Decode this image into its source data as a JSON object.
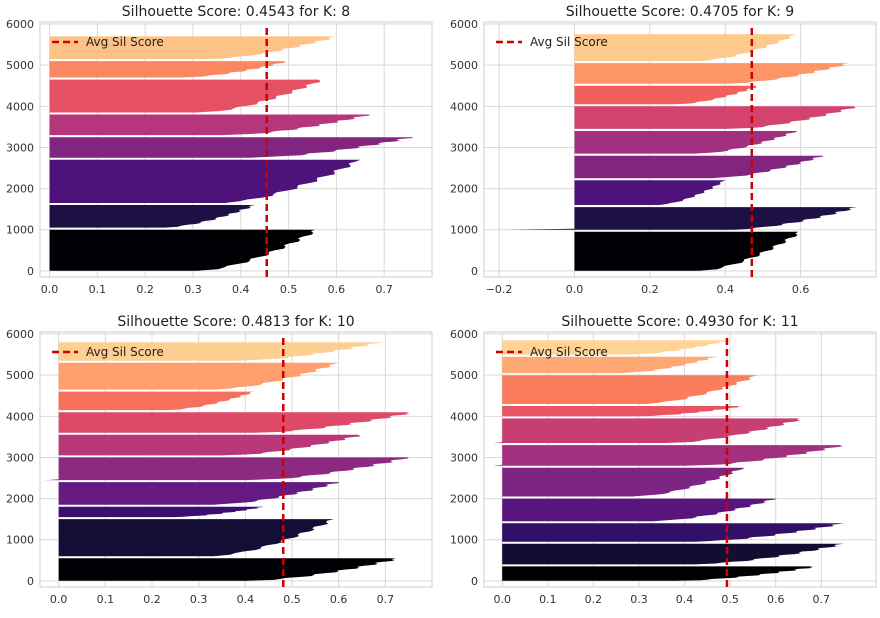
{
  "colors": {
    "avg_line": "#cc0000",
    "plot_bg": "#ffffff",
    "grid": "#d9d9d9",
    "axis_text": "#333333",
    "cluster_palette_name": "magma"
  },
  "chart_data": [
    {
      "type": "silhouette",
      "title": "Silhouette Score: 0.4543 for K: 8",
      "k": 8,
      "avg_score": 0.4543,
      "legend_label": "Avg Sil Score",
      "legend_position": "top-left",
      "xlim": [
        -0.02,
        0.8
      ],
      "ylim": [
        -150,
        6050
      ],
      "xticks": [
        0.0,
        0.1,
        0.2,
        0.3,
        0.4,
        0.5,
        0.6,
        0.7
      ],
      "xtick_labels": [
        "0.0",
        "0.1",
        "0.2",
        "0.3",
        "0.4",
        "0.5",
        "0.6",
        "0.7"
      ],
      "yticks": [
        0,
        1000,
        2000,
        3000,
        4000,
        5000,
        6000
      ],
      "ytick_labels": [
        "0",
        "1000",
        "2000",
        "3000",
        "4000",
        "5000",
        "6000"
      ],
      "clusters": [
        {
          "id": 0,
          "start": 0,
          "end": 1000,
          "min": 0.0,
          "max": 0.56,
          "color": "#000004"
        },
        {
          "id": 1,
          "start": 1050,
          "end": 1600,
          "min": 0.0,
          "max": 0.43,
          "color": "#1c1044"
        },
        {
          "id": 2,
          "start": 1650,
          "end": 2700,
          "min": 0.0,
          "max": 0.65,
          "color": "#4f127b"
        },
        {
          "id": 3,
          "start": 2750,
          "end": 3250,
          "min": 0.0,
          "max": 0.76,
          "color": "#812581"
        },
        {
          "id": 4,
          "start": 3300,
          "end": 3800,
          "min": 0.0,
          "max": 0.67,
          "color": "#b5367a"
        },
        {
          "id": 5,
          "start": 3850,
          "end": 4650,
          "min": 0.0,
          "max": 0.57,
          "color": "#e55064"
        },
        {
          "id": 6,
          "start": 4700,
          "end": 5100,
          "min": 0.0,
          "max": 0.5,
          "color": "#fb8761"
        },
        {
          "id": 7,
          "start": 5150,
          "end": 5700,
          "min": 0.0,
          "max": 0.6,
          "color": "#fec287"
        }
      ]
    },
    {
      "type": "silhouette",
      "title": "Silhouette Score: 0.4705 for K: 9",
      "k": 9,
      "avg_score": 0.4705,
      "legend_label": "Avg Sil Score",
      "legend_position": "top-left",
      "xlim": [
        -0.24,
        0.8
      ],
      "ylim": [
        -150,
        6050
      ],
      "xticks": [
        -0.2,
        0.0,
        0.2,
        0.4,
        0.6
      ],
      "xtick_labels": [
        "−0.2",
        "0.0",
        "0.2",
        "0.4",
        "0.6"
      ],
      "yticks": [
        0,
        1000,
        2000,
        3000,
        4000,
        5000,
        6000
      ],
      "ytick_labels": [
        "0",
        "1000",
        "2000",
        "3000",
        "4000",
        "5000",
        "6000"
      ],
      "clusters": [
        {
          "id": 0,
          "start": 0,
          "end": 950,
          "min": 0.0,
          "max": 0.6,
          "color": "#000004"
        },
        {
          "id": 1,
          "start": 1000,
          "end": 1550,
          "min": -0.18,
          "max": 0.75,
          "color": "#1c1044"
        },
        {
          "id": 2,
          "start": 1600,
          "end": 2200,
          "min": 0.0,
          "max": 0.4,
          "color": "#4f127b"
        },
        {
          "id": 3,
          "start": 2250,
          "end": 2800,
          "min": 0.0,
          "max": 0.66,
          "color": "#812581"
        },
        {
          "id": 4,
          "start": 2850,
          "end": 3400,
          "min": 0.0,
          "max": 0.59,
          "color": "#a3307e"
        },
        {
          "id": 5,
          "start": 3450,
          "end": 4000,
          "min": 0.0,
          "max": 0.75,
          "color": "#d3436e"
        },
        {
          "id": 6,
          "start": 4050,
          "end": 4500,
          "min": 0.0,
          "max": 0.49,
          "color": "#f1605d"
        },
        {
          "id": 7,
          "start": 4550,
          "end": 5050,
          "min": 0.0,
          "max": 0.73,
          "color": "#fd9567"
        },
        {
          "id": 8,
          "start": 5100,
          "end": 5750,
          "min": 0.0,
          "max": 0.59,
          "color": "#fec98d"
        }
      ]
    },
    {
      "type": "silhouette",
      "title": "Silhouette Score: 0.4813 for K: 10",
      "k": 10,
      "avg_score": 0.4813,
      "legend_label": "Avg Sil Score",
      "legend_position": "top-left",
      "xlim": [
        -0.04,
        0.8
      ],
      "ylim": [
        -150,
        6050
      ],
      "xticks": [
        0.0,
        0.1,
        0.2,
        0.3,
        0.4,
        0.5,
        0.6,
        0.7
      ],
      "xtick_labels": [
        "0.0",
        "0.1",
        "0.2",
        "0.3",
        "0.4",
        "0.5",
        "0.6",
        "0.7"
      ],
      "yticks": [
        0,
        1000,
        2000,
        3000,
        4000,
        5000,
        6000
      ],
      "ytick_labels": [
        "0",
        "1000",
        "2000",
        "3000",
        "4000",
        "5000",
        "6000"
      ],
      "clusters": [
        {
          "id": 0,
          "start": 0,
          "end": 550,
          "min": 0.0,
          "max": 0.73,
          "color": "#000004"
        },
        {
          "id": 1,
          "start": 600,
          "end": 1500,
          "min": 0.0,
          "max": 0.59,
          "color": "#140e36"
        },
        {
          "id": 2,
          "start": 1550,
          "end": 1800,
          "min": 0.0,
          "max": 0.44,
          "color": "#3b0f70"
        },
        {
          "id": 3,
          "start": 1850,
          "end": 2400,
          "min": 0.0,
          "max": 0.6,
          "color": "#641a80"
        },
        {
          "id": 4,
          "start": 2450,
          "end": 3000,
          "min": -0.03,
          "max": 0.75,
          "color": "#8c2981"
        },
        {
          "id": 5,
          "start": 3050,
          "end": 3550,
          "min": 0.0,
          "max": 0.65,
          "color": "#b73779"
        },
        {
          "id": 6,
          "start": 3600,
          "end": 4100,
          "min": 0.0,
          "max": 0.76,
          "color": "#de4968"
        },
        {
          "id": 7,
          "start": 4150,
          "end": 4600,
          "min": 0.0,
          "max": 0.42,
          "color": "#f7705c"
        },
        {
          "id": 8,
          "start": 4650,
          "end": 5300,
          "min": 0.0,
          "max": 0.6,
          "color": "#fe9f6d"
        },
        {
          "id": 9,
          "start": 5350,
          "end": 5800,
          "min": 0.0,
          "max": 0.69,
          "color": "#fecf92"
        }
      ]
    },
    {
      "type": "silhouette",
      "title": "Silhouette Score: 0.4930 for K: 11",
      "k": 11,
      "avg_score": 0.493,
      "legend_label": "Avg Sil Score",
      "legend_position": "top-left",
      "xlim": [
        -0.04,
        0.82
      ],
      "ylim": [
        -150,
        6050
      ],
      "xticks": [
        0.0,
        0.1,
        0.2,
        0.3,
        0.4,
        0.5,
        0.6,
        0.7
      ],
      "xtick_labels": [
        "0.0",
        "0.1",
        "0.2",
        "0.3",
        "0.4",
        "0.5",
        "0.6",
        "0.7"
      ],
      "yticks": [
        0,
        1000,
        2000,
        3000,
        4000,
        5000,
        6000
      ],
      "ytick_labels": [
        "0",
        "1000",
        "2000",
        "3000",
        "4000",
        "5000",
        "6000"
      ],
      "clusters": [
        {
          "id": 0,
          "start": 0,
          "end": 350,
          "min": 0.0,
          "max": 0.69,
          "color": "#000004"
        },
        {
          "id": 1,
          "start": 400,
          "end": 900,
          "min": 0.0,
          "max": 0.75,
          "color": "#120d32"
        },
        {
          "id": 2,
          "start": 950,
          "end": 1400,
          "min": 0.0,
          "max": 0.75,
          "color": "#331067"
        },
        {
          "id": 3,
          "start": 1450,
          "end": 2000,
          "min": 0.0,
          "max": 0.6,
          "color": "#59157e"
        },
        {
          "id": 4,
          "start": 2050,
          "end": 2750,
          "min": 0.0,
          "max": 0.53,
          "color": "#7e2482"
        },
        {
          "id": 5,
          "start": 2800,
          "end": 3300,
          "min": -0.02,
          "max": 0.75,
          "color": "#a3307e"
        },
        {
          "id": 6,
          "start": 3350,
          "end": 3950,
          "min": -0.02,
          "max": 0.66,
          "color": "#c83e73"
        },
        {
          "id": 7,
          "start": 4000,
          "end": 4250,
          "min": 0.0,
          "max": 0.53,
          "color": "#e95462"
        },
        {
          "id": 8,
          "start": 4300,
          "end": 5000,
          "min": 0.0,
          "max": 0.56,
          "color": "#fa7d5e"
        },
        {
          "id": 9,
          "start": 5050,
          "end": 5450,
          "min": 0.0,
          "max": 0.47,
          "color": "#fea973"
        },
        {
          "id": 10,
          "start": 5500,
          "end": 5850,
          "min": 0.0,
          "max": 0.5,
          "color": "#fed395"
        }
      ]
    }
  ]
}
